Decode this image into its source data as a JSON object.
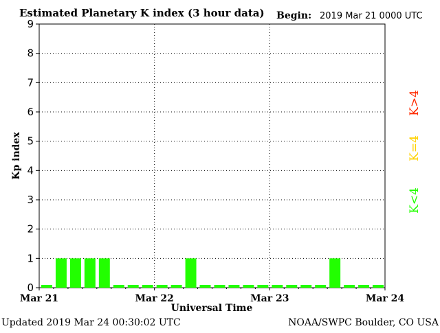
{
  "header": {
    "title": "Estimated Planetary K index (3 hour data)",
    "begin_label": "Begin:",
    "begin_value": "2019 Mar 21 0000 UTC"
  },
  "footer": {
    "updated": "Updated 2019 Mar 24 00:30:02 UTC",
    "source": "NOAA/SWPC Boulder, CO USA"
  },
  "legend": {
    "high": {
      "label": "K>4",
      "color": "#ff2a00"
    },
    "equal": {
      "label": "K=4",
      "color": "#ffd200"
    },
    "low": {
      "label": "K<4",
      "color": "#22ff00"
    }
  },
  "chart_data": {
    "type": "bar",
    "title": "Estimated Planetary K index (3 hour data)",
    "xlabel": "Universal Time",
    "ylabel": "Kp index",
    "ylim": [
      0,
      9
    ],
    "yticks": [
      0,
      1,
      2,
      3,
      4,
      5,
      6,
      7,
      8,
      9
    ],
    "xticks": [
      "Mar 21",
      "Mar 22",
      "Mar 23",
      "Mar 24"
    ],
    "grid": true,
    "interval_hours": 3,
    "values": [
      0,
      1,
      1,
      1,
      1,
      0,
      0,
      0,
      0,
      0,
      1,
      0,
      0,
      0,
      0,
      0,
      0,
      0,
      0,
      0,
      1,
      0,
      0,
      0
    ],
    "bar_color": "#22ff00"
  }
}
